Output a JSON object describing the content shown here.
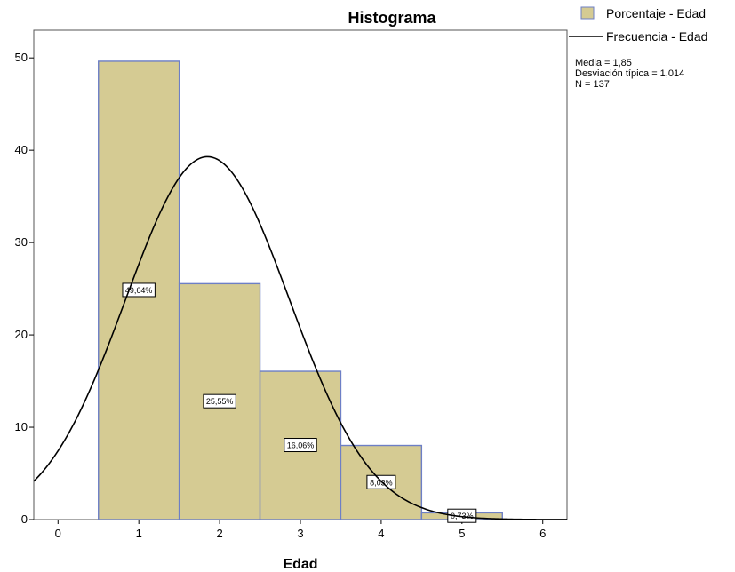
{
  "chart_data": {
    "type": "bar",
    "title": "Histograma",
    "xlabel": "Edad",
    "ylabel": "",
    "xlim": [
      -0.3,
      6.3
    ],
    "ylim": [
      0,
      53
    ],
    "xticks": [
      0,
      1,
      2,
      3,
      4,
      5,
      6
    ],
    "yticks": [
      0,
      10,
      20,
      30,
      40,
      50
    ],
    "categories": [
      "1",
      "2",
      "3",
      "4",
      "5"
    ],
    "series": [
      {
        "name": "Porcentaje - Edad",
        "x": [
          1,
          2,
          3,
          4,
          5
        ],
        "values": [
          49.64,
          25.55,
          16.06,
          8.03,
          0.73
        ],
        "labels": [
          "49,64%",
          "25,55%",
          "16,06%",
          "8,03%",
          "0,73%"
        ],
        "color": "#d5cb93",
        "edge_color": "#6d7fc6"
      },
      {
        "name": "Frecuencia - Edad",
        "type": "line",
        "mean": 1.85,
        "sd": 1.014,
        "peak": 39.3,
        "color": "#000000"
      }
    ],
    "stats": [
      "Media = 1,85",
      "Desviación típica = 1,014",
      "N = 137"
    ],
    "grid": false,
    "legend_position": "top-right"
  }
}
